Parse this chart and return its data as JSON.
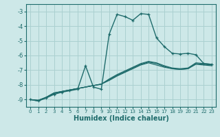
{
  "xlabel": "Humidex (Indice chaleur)",
  "ylabel": "",
  "xlim": [
    -0.5,
    23.5
  ],
  "ylim": [
    -9.5,
    -2.5
  ],
  "xticks": [
    0,
    1,
    2,
    3,
    4,
    5,
    6,
    7,
    8,
    9,
    10,
    11,
    12,
    13,
    14,
    15,
    16,
    17,
    18,
    19,
    20,
    21,
    22,
    23
  ],
  "yticks": [
    -9,
    -8,
    -7,
    -6,
    -5,
    -4,
    -3
  ],
  "bg_color": "#cde8e8",
  "line_color": "#1e6b6b",
  "grid_color": "#aad0d0",
  "lines": [
    {
      "x": [
        0,
        1,
        2,
        3,
        4,
        5,
        6,
        7,
        8,
        9,
        10,
        11,
        12,
        13,
        14,
        15,
        16,
        17,
        18,
        19,
        20,
        21,
        22,
        23
      ],
      "y": [
        -9.0,
        -9.1,
        -8.85,
        -8.6,
        -8.45,
        -8.35,
        -8.25,
        -8.15,
        -8.05,
        -7.95,
        -7.7,
        -7.4,
        -7.15,
        -6.9,
        -6.65,
        -6.5,
        -6.65,
        -6.8,
        -6.9,
        -6.95,
        -6.9,
        -6.6,
        -6.65,
        -6.7
      ],
      "marker": false,
      "lw": 0.9
    },
    {
      "x": [
        0,
        1,
        2,
        3,
        4,
        5,
        6,
        7,
        8,
        9,
        10,
        11,
        12,
        13,
        14,
        15,
        16,
        17,
        18,
        19,
        20,
        21,
        22,
        23
      ],
      "y": [
        -9.0,
        -9.05,
        -8.85,
        -8.55,
        -8.45,
        -8.35,
        -8.25,
        -8.15,
        -8.05,
        -7.95,
        -7.65,
        -7.35,
        -7.1,
        -6.85,
        -6.6,
        -6.45,
        -6.55,
        -6.75,
        -6.9,
        -6.95,
        -6.9,
        -6.55,
        -6.6,
        -6.65
      ],
      "marker": false,
      "lw": 0.9
    },
    {
      "x": [
        0,
        1,
        2,
        3,
        4,
        5,
        6,
        7,
        8,
        9,
        10,
        11,
        12,
        13,
        14,
        15,
        16,
        17,
        18,
        19,
        20,
        21,
        22,
        23
      ],
      "y": [
        -9.0,
        -9.05,
        -8.85,
        -8.55,
        -8.45,
        -8.35,
        -8.25,
        -8.15,
        -8.05,
        -7.95,
        -7.6,
        -7.3,
        -7.05,
        -6.8,
        -6.55,
        -6.4,
        -6.5,
        -6.7,
        -6.85,
        -6.9,
        -6.85,
        -6.5,
        -6.55,
        -6.6
      ],
      "marker": false,
      "lw": 0.9
    },
    {
      "x": [
        0,
        1,
        2,
        3,
        4,
        5,
        6,
        7,
        8,
        9,
        10,
        11,
        12,
        13,
        14,
        15,
        16,
        17,
        18,
        19,
        20,
        21,
        22,
        23
      ],
      "y": [
        -9.0,
        -9.1,
        -8.9,
        -8.65,
        -8.5,
        -8.4,
        -8.3,
        -6.7,
        -8.15,
        -8.3,
        -4.55,
        -3.2,
        -3.35,
        -3.6,
        -3.15,
        -3.2,
        -4.8,
        -5.4,
        -5.85,
        -5.9,
        -5.85,
        -5.95,
        -6.55,
        -6.6
      ],
      "marker": true,
      "lw": 1.0
    }
  ]
}
